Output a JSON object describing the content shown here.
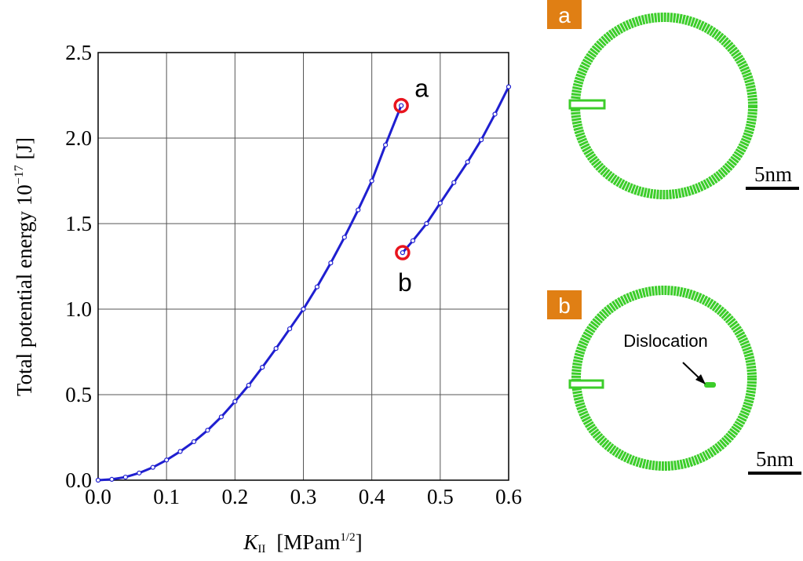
{
  "chart_data": {
    "type": "line",
    "x_label": {
      "symbol": "K",
      "subscript": "II",
      "unit": "[MPam",
      "unit_sup": "1/2",
      "unit_end": "]"
    },
    "y_label": {
      "text": "Total potential energy 10",
      "sup": "−17",
      "unit": " [J]"
    },
    "xlim": [
      0,
      0.6
    ],
    "xticks": [
      {
        "value": 0,
        "label": "0.0"
      },
      0.1,
      0.2,
      0.3,
      0.4,
      0.5,
      0.6
    ],
    "ylim": [
      0,
      2.5
    ],
    "yticks": [
      {
        "value": 0,
        "label": "0.0"
      },
      0.5,
      {
        "value": 1,
        "label": "1.0"
      },
      1.5,
      {
        "value": 2,
        "label": "2.0"
      },
      2.5
    ],
    "grid": true,
    "series": [
      {
        "color": "#1f1fd0",
        "x": [
          0,
          0.02,
          0.04,
          0.06,
          0.08,
          0.1,
          0.12,
          0.14,
          0.16,
          0.18,
          0.2,
          0.22,
          0.24,
          0.26,
          0.28,
          0.3,
          0.32,
          0.34,
          0.36,
          0.38,
          0.4,
          0.42,
          0.443
        ],
        "values": [
          0,
          0.005,
          0.018,
          0.042,
          0.075,
          0.118,
          0.168,
          0.225,
          0.292,
          0.37,
          0.46,
          0.555,
          0.66,
          0.77,
          0.885,
          1.0,
          1.13,
          1.27,
          1.42,
          1.58,
          1.75,
          1.96,
          2.19
        ]
      },
      {
        "color": "#1f1fd0",
        "x": [
          0.445,
          0.46,
          0.48,
          0.5,
          0.52,
          0.54,
          0.56,
          0.58,
          0.6
        ],
        "values": [
          1.33,
          1.4,
          1.5,
          1.62,
          1.74,
          1.86,
          1.99,
          2.14,
          2.3
        ]
      }
    ],
    "annotations": [
      {
        "text": "a",
        "x": 0.443,
        "y": 2.19
      },
      {
        "text": "b",
        "x": 0.445,
        "y": 1.33
      }
    ],
    "highlight_color": "#e8141e"
  },
  "insets": [
    {
      "label": "a",
      "scale": "5nm"
    },
    {
      "label": "b",
      "scale": "5nm",
      "annotation": "Dislocation"
    }
  ]
}
